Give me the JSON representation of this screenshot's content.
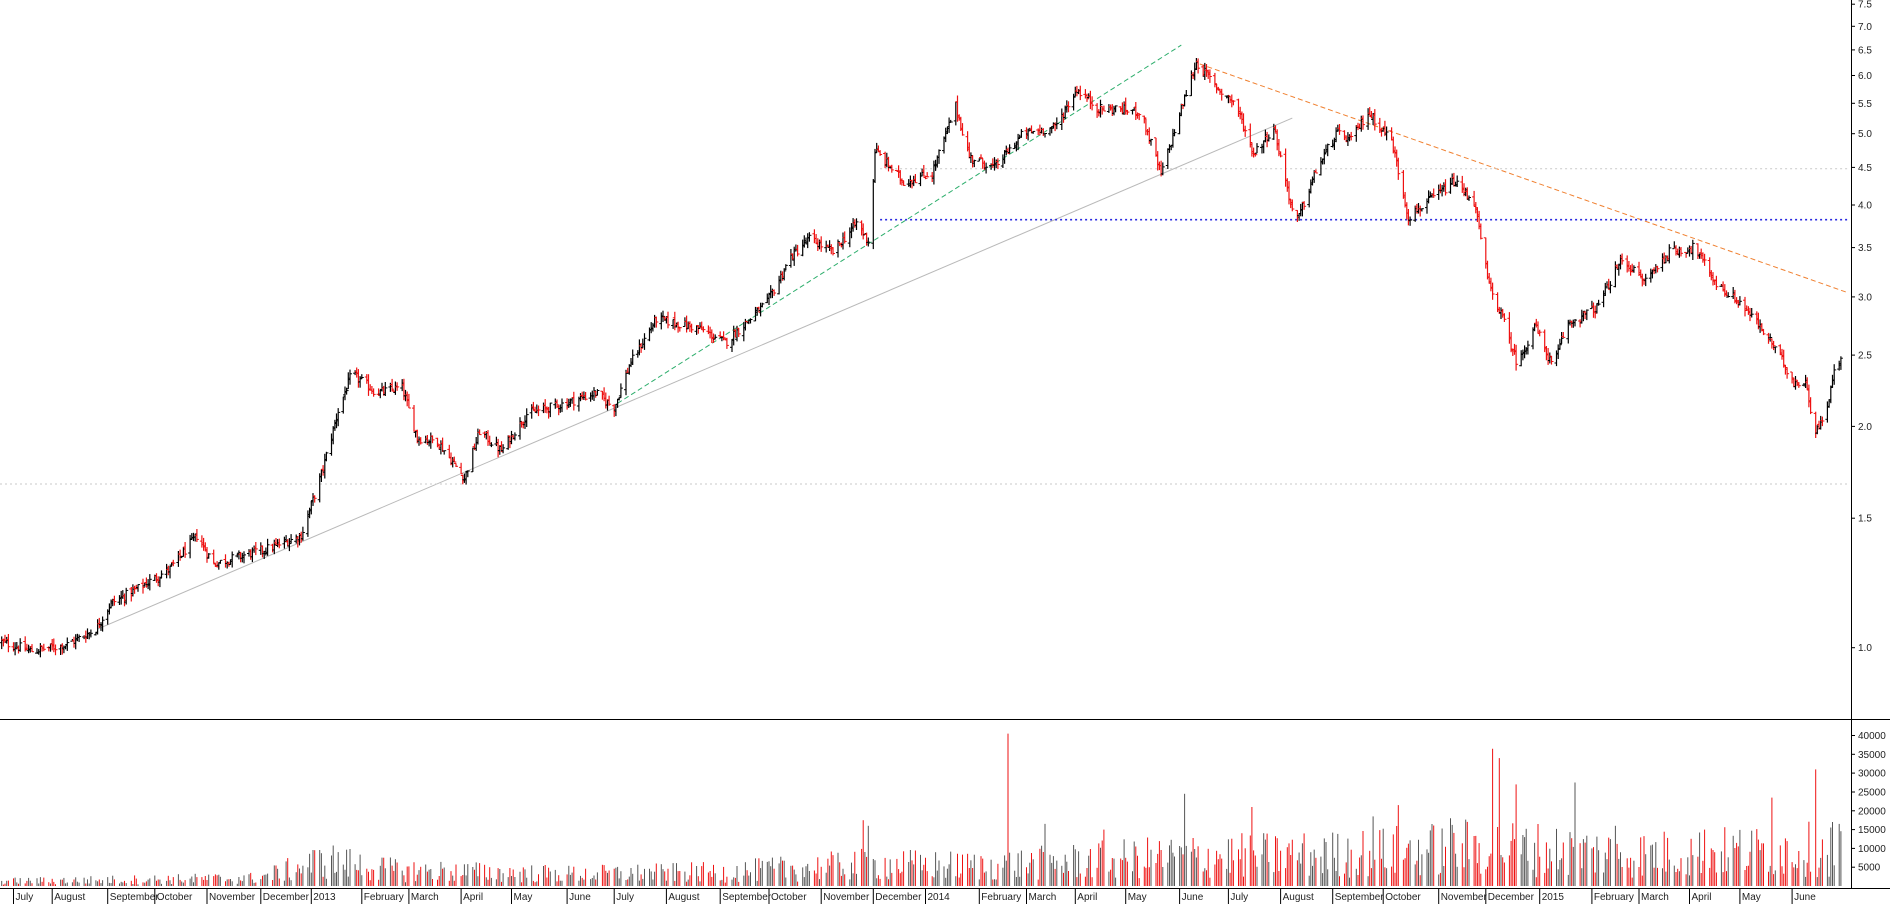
{
  "chart_data": [
    {
      "type": "candlestick",
      "y_scale": "log",
      "ylim": [
        0.8,
        7.6
      ],
      "y_ticks": [
        1.0,
        1.5,
        2.0,
        2.5,
        3.0,
        3.5,
        4.0,
        4.5,
        5.0,
        5.5,
        6.0,
        6.5,
        7.0,
        7.5
      ],
      "y_tick_labels": [
        "1.0",
        "1.5",
        "2.0",
        "2.5",
        "3.0",
        "3.5",
        "4.0",
        "4.5",
        "5.0",
        "5.5",
        "6.0",
        "6.5",
        "7.0",
        "7.5"
      ],
      "x_range": [
        "2012-07-01",
        "2015-07-06"
      ],
      "x_month_labels": [
        {
          "date": "2012-07-09",
          "label": "July"
        },
        {
          "date": "2012-08-01",
          "label": "August"
        },
        {
          "date": "2012-09-03",
          "label": "September"
        },
        {
          "date": "2012-10-01",
          "label": "October"
        },
        {
          "date": "2012-11-01",
          "label": "November"
        },
        {
          "date": "2012-12-03",
          "label": "December"
        },
        {
          "date": "2013-01-02",
          "label": "2013"
        },
        {
          "date": "2013-02-01",
          "label": "February"
        },
        {
          "date": "2013-03-01",
          "label": "March"
        },
        {
          "date": "2013-04-01",
          "label": "April"
        },
        {
          "date": "2013-05-01",
          "label": "May"
        },
        {
          "date": "2013-06-03",
          "label": "June"
        },
        {
          "date": "2013-07-01",
          "label": "July"
        },
        {
          "date": "2013-08-01",
          "label": "August"
        },
        {
          "date": "2013-09-02",
          "label": "September"
        },
        {
          "date": "2013-10-01",
          "label": "October"
        },
        {
          "date": "2013-11-01",
          "label": "November"
        },
        {
          "date": "2013-12-02",
          "label": "December"
        },
        {
          "date": "2014-01-02",
          "label": "2014"
        },
        {
          "date": "2014-02-03",
          "label": "February"
        },
        {
          "date": "2014-03-03",
          "label": "March"
        },
        {
          "date": "2014-04-01",
          "label": "April"
        },
        {
          "date": "2014-05-01",
          "label": "May"
        },
        {
          "date": "2014-06-02",
          "label": "June"
        },
        {
          "date": "2014-07-01",
          "label": "July"
        },
        {
          "date": "2014-08-01",
          "label": "August"
        },
        {
          "date": "2014-09-01",
          "label": "September"
        },
        {
          "date": "2014-10-01",
          "label": "October"
        },
        {
          "date": "2014-11-03",
          "label": "November"
        },
        {
          "date": "2014-12-01",
          "label": "December"
        },
        {
          "date": "2015-01-02",
          "label": "2015"
        },
        {
          "date": "2015-02-02",
          "label": "February"
        },
        {
          "date": "2015-03-02",
          "label": "March"
        },
        {
          "date": "2015-04-01",
          "label": "April"
        },
        {
          "date": "2015-05-01",
          "label": "May"
        },
        {
          "date": "2015-06-01",
          "label": "June"
        }
      ],
      "price_path": [
        [
          "2012-07-01",
          1.02
        ],
        [
          "2012-07-20",
          0.99
        ],
        [
          "2012-08-10",
          1.01
        ],
        [
          "2012-08-27",
          1.06
        ],
        [
          "2012-09-05",
          1.15
        ],
        [
          "2012-09-20",
          1.2
        ],
        [
          "2012-10-10",
          1.28
        ],
        [
          "2012-10-26",
          1.42
        ],
        [
          "2012-11-05",
          1.3
        ],
        [
          "2012-11-20",
          1.33
        ],
        [
          "2012-12-10",
          1.37
        ],
        [
          "2012-12-27",
          1.42
        ],
        [
          "2013-01-08",
          1.72
        ],
        [
          "2013-01-18",
          2.1
        ],
        [
          "2013-01-26",
          2.36
        ],
        [
          "2013-02-10",
          2.22
        ],
        [
          "2013-02-25",
          2.26
        ],
        [
          "2013-03-06",
          1.93
        ],
        [
          "2013-03-18",
          1.91
        ],
        [
          "2013-04-03",
          1.7
        ],
        [
          "2013-04-12",
          1.97
        ],
        [
          "2013-04-25",
          1.85
        ],
        [
          "2013-05-10",
          2.08
        ],
        [
          "2013-05-30",
          2.14
        ],
        [
          "2013-06-20",
          2.22
        ],
        [
          "2013-07-01",
          2.12
        ],
        [
          "2013-07-10",
          2.42
        ],
        [
          "2013-07-26",
          2.8
        ],
        [
          "2013-08-20",
          2.72
        ],
        [
          "2013-09-05",
          2.6
        ],
        [
          "2013-09-30",
          2.95
        ],
        [
          "2013-10-14",
          3.4
        ],
        [
          "2013-10-25",
          3.6
        ],
        [
          "2013-11-08",
          3.45
        ],
        [
          "2013-11-22",
          3.78
        ],
        [
          "2013-11-30",
          3.55
        ],
        [
          "2013-12-03",
          4.75
        ],
        [
          "2013-12-20",
          4.3
        ],
        [
          "2014-01-06",
          4.42
        ],
        [
          "2014-01-20",
          5.45
        ],
        [
          "2014-01-28",
          4.65
        ],
        [
          "2014-02-12",
          4.5
        ],
        [
          "2014-03-01",
          5.0
        ],
        [
          "2014-03-20",
          5.1
        ],
        [
          "2014-04-02",
          5.75
        ],
        [
          "2014-04-15",
          5.4
        ],
        [
          "2014-04-28",
          5.4
        ],
        [
          "2014-05-10",
          5.35
        ],
        [
          "2014-05-22",
          4.4
        ],
        [
          "2014-06-04",
          5.5
        ],
        [
          "2014-06-12",
          6.25
        ],
        [
          "2014-06-25",
          5.75
        ],
        [
          "2014-07-05",
          5.5
        ],
        [
          "2014-07-16",
          4.7
        ],
        [
          "2014-07-28",
          5.1
        ],
        [
          "2014-08-10",
          3.75
        ],
        [
          "2014-08-22",
          4.45
        ],
        [
          "2014-09-03",
          5.0
        ],
        [
          "2014-09-12",
          4.9
        ],
        [
          "2014-09-22",
          5.35
        ],
        [
          "2014-10-06",
          4.9
        ],
        [
          "2014-10-16",
          3.85
        ],
        [
          "2014-10-28",
          4.05
        ],
        [
          "2014-11-12",
          4.3
        ],
        [
          "2014-11-24",
          4.05
        ],
        [
          "2014-12-03",
          3.1
        ],
        [
          "2014-12-10",
          2.85
        ],
        [
          "2014-12-20",
          2.42
        ],
        [
          "2014-12-30",
          2.75
        ],
        [
          "2015-01-10",
          2.4
        ],
        [
          "2015-01-18",
          2.75
        ],
        [
          "2015-02-05",
          2.9
        ],
        [
          "2015-02-20",
          3.38
        ],
        [
          "2015-03-05",
          3.15
        ],
        [
          "2015-03-20",
          3.45
        ],
        [
          "2015-04-04",
          3.5
        ],
        [
          "2015-04-18",
          3.1
        ],
        [
          "2015-05-01",
          2.95
        ],
        [
          "2015-05-12",
          2.75
        ],
        [
          "2015-05-22",
          2.55
        ],
        [
          "2015-06-02",
          2.3
        ],
        [
          "2015-06-10",
          2.28
        ],
        [
          "2015-06-14",
          1.95
        ],
        [
          "2015-06-20",
          2.05
        ],
        [
          "2015-06-27",
          2.42
        ],
        [
          "2015-06-30",
          2.45
        ]
      ],
      "trend_lines": [
        {
          "name": "support-long",
          "color": "#b9b9b9",
          "style": "solid",
          "from": [
            "2012-08-28",
            1.06
          ],
          "to": [
            "2014-08-08",
            5.25
          ]
        },
        {
          "name": "support-steep",
          "color": "#2dae6c",
          "style": "dashed",
          "from": [
            "2013-07-03",
            2.15
          ],
          "to": [
            "2014-06-03",
            6.6
          ]
        },
        {
          "name": "resistance",
          "color": "#f08030",
          "style": "dashed",
          "from": [
            "2014-06-14",
            6.22
          ],
          "to": [
            "2015-07-04",
            3.04
          ]
        },
        {
          "name": "level-4.5",
          "color": "#c9c9c9",
          "style": "dotted",
          "from": [
            "2013-12-06",
            4.48
          ],
          "to": [
            "2015-07-04",
            4.48
          ]
        },
        {
          "name": "level-1.7",
          "color": "#c9c9c9",
          "style": "dotted",
          "from": [
            "2012-07-01",
            1.67
          ],
          "to": [
            "2015-07-04",
            1.67
          ]
        },
        {
          "name": "level-3.8",
          "color": "#2a2ae0",
          "style": "dotted",
          "from": [
            "2013-12-06",
            3.82
          ],
          "to": [
            "2015-07-04",
            3.82
          ]
        }
      ],
      "colors": {
        "up": "#000000",
        "down": "#ee1111"
      }
    },
    {
      "type": "bar",
      "name": "volume",
      "ylim": [
        0,
        42000
      ],
      "y_ticks": [
        5000,
        10000,
        15000,
        20000,
        25000,
        30000,
        35000,
        40000
      ],
      "y_tick_labels": [
        "5000",
        "10000",
        "15000",
        "20000",
        "25000",
        "30000",
        "35000",
        "40000"
      ],
      "baseline_path": [
        [
          "2012-07-01",
          1200
        ],
        [
          "2012-12-01",
          2000
        ],
        [
          "2013-01-10",
          6500
        ],
        [
          "2013-02-20",
          4000
        ],
        [
          "2013-06-01",
          3000
        ],
        [
          "2013-09-01",
          3500
        ],
        [
          "2013-12-01",
          5500
        ],
        [
          "2014-02-01",
          5000
        ],
        [
          "2014-06-01",
          7500
        ],
        [
          "2014-09-01",
          8000
        ],
        [
          "2014-12-01",
          10000
        ],
        [
          "2015-03-01",
          8000
        ],
        [
          "2015-06-30",
          9500
        ]
      ],
      "spikes": [
        [
          "2014-02-20",
          40500
        ],
        [
          "2014-12-05",
          36500
        ],
        [
          "2014-12-09",
          34000
        ],
        [
          "2015-06-15",
          31000
        ],
        [
          "2014-12-20",
          27000
        ],
        [
          "2015-01-23",
          27500
        ],
        [
          "2014-06-05",
          24500
        ],
        [
          "2015-05-20",
          23500
        ],
        [
          "2014-07-15",
          21000
        ],
        [
          "2014-10-10",
          21500
        ],
        [
          "2014-09-25",
          18500
        ],
        [
          "2014-11-10",
          18000
        ],
        [
          "2013-11-26",
          17500
        ],
        [
          "2013-11-29",
          16000
        ],
        [
          "2014-03-15",
          16500
        ],
        [
          "2014-04-18",
          15000
        ],
        [
          "2015-02-16",
          16000
        ],
        [
          "2015-04-10",
          15000
        ],
        [
          "2015-06-25",
          17000
        ],
        [
          "2015-06-29",
          16500
        ]
      ],
      "colors": {
        "up": "#555555",
        "down": "#ee1111"
      }
    }
  ]
}
